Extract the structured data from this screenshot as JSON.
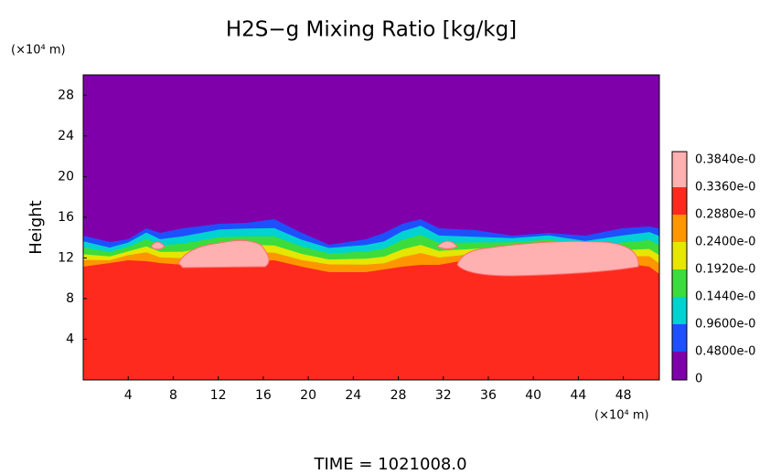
{
  "chart_data": {
    "type": "contour",
    "title": "H2S−g Mixing Ratio [kg/kg]",
    "y_unit": "(×10⁴ m)",
    "x_unit": "(×10⁴ m)",
    "ylabel": "Height",
    "footer": "TIME = 1021008.0",
    "xlim": [
      0,
      51.2
    ],
    "ylim": [
      0,
      30
    ],
    "xticks": [
      4,
      8,
      12,
      16,
      20,
      24,
      28,
      32,
      36,
      40,
      44,
      48
    ],
    "yticks": [
      4,
      8,
      12,
      16,
      20,
      24,
      28
    ],
    "colorbar": {
      "ticks": [
        {
          "value": 0.384,
          "label": "0.3840e-0"
        },
        {
          "value": 0.336,
          "label": "0.3360e-0"
        },
        {
          "value": 0.288,
          "label": "0.2880e-0"
        },
        {
          "value": 0.24,
          "label": "0.2400e-0"
        },
        {
          "value": 0.192,
          "label": "0.1920e-0"
        },
        {
          "value": 0.144,
          "label": "0.1440e-0"
        },
        {
          "value": 0.96,
          "label": "0.9600e-0"
        },
        {
          "value": 0.48,
          "label": "0.4800e-0"
        },
        0.0
      ],
      "colors": [
        "#ffb0b0",
        "#ff2a1e",
        "#ff9600",
        "#e6e600",
        "#3cdc3c",
        "#00d2d2",
        "#1e50ff",
        "#7f00aa"
      ]
    }
  }
}
